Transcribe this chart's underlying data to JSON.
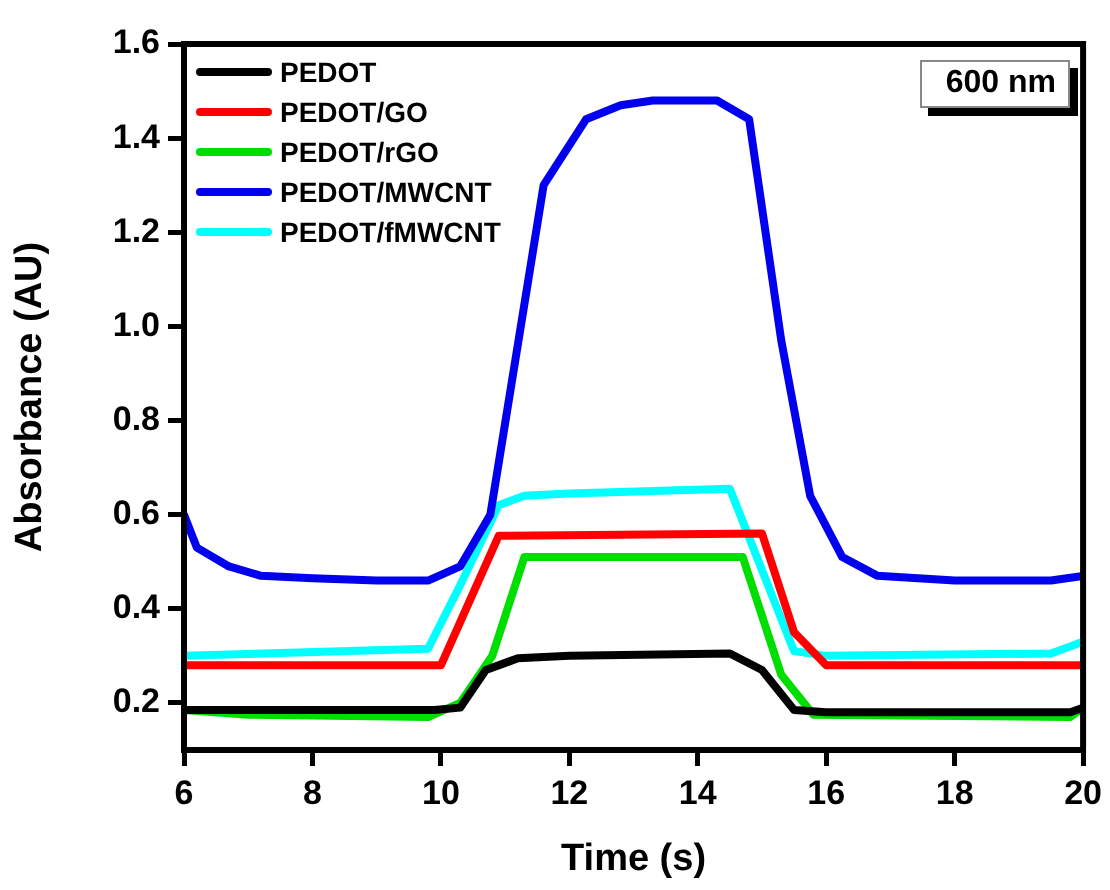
{
  "chart_data": {
    "type": "line",
    "xlabel": "Time (s)",
    "ylabel": "Absorbance (AU)",
    "annotations": [
      "600 nm"
    ],
    "xlim": [
      6,
      20
    ],
    "xticks": [
      6,
      8,
      10,
      12,
      14,
      16,
      18,
      20
    ],
    "ylim": [
      0.1,
      1.6
    ],
    "yticks": [
      {
        "value": 0.2,
        "label": "0.2"
      },
      {
        "value": 0.4,
        "label": "0.4"
      },
      {
        "value": 0.6,
        "label": "0.6"
      },
      {
        "value": 0.8,
        "label": "0.8"
      },
      {
        "value": 1.0,
        "label": "1.0"
      },
      {
        "value": 1.2,
        "label": "1.2"
      },
      {
        "value": 1.4,
        "label": "1.4"
      },
      {
        "value": 1.6,
        "label": "1.6"
      }
    ],
    "grid": false,
    "legend": "top left",
    "marker": "none",
    "line_style": "solid",
    "series": [
      {
        "name": "PEDOT",
        "color": "#000000",
        "x": [
          6,
          9.9,
          10.3,
          10.7,
          11.2,
          12,
          14.5,
          15,
          15.5,
          16,
          19.8,
          20
        ],
        "values": [
          0.185,
          0.185,
          0.19,
          0.27,
          0.295,
          0.3,
          0.305,
          0.27,
          0.185,
          0.18,
          0.18,
          0.19
        ]
      },
      {
        "name": "PEDOT/GO",
        "color": "#ff0000",
        "x": [
          6,
          10,
          10.9,
          15,
          15.5,
          16,
          20
        ],
        "values": [
          0.28,
          0.28,
          0.555,
          0.56,
          0.35,
          0.28,
          0.28
        ]
      },
      {
        "name": "PEDOT/rGO",
        "color": "#00dd00",
        "x": [
          6,
          7,
          9.8,
          10.3,
          10.8,
          11.3,
          14.7,
          15.3,
          15.8,
          19.8,
          20
        ],
        "values": [
          0.185,
          0.175,
          0.17,
          0.2,
          0.3,
          0.51,
          0.51,
          0.26,
          0.175,
          0.17,
          0.19
        ]
      },
      {
        "name": "PEDOT/MWCNT",
        "color": "#0000ee",
        "x": [
          6,
          6.2,
          6.7,
          7.2,
          8,
          9,
          9.8,
          10.3,
          10.77,
          11.6,
          12.26,
          12.8,
          13.3,
          14.3,
          14.8,
          15.3,
          15.75,
          16.25,
          16.8,
          18,
          19.5,
          20
        ],
        "values": [
          0.6,
          0.53,
          0.49,
          0.47,
          0.465,
          0.46,
          0.46,
          0.49,
          0.6,
          1.3,
          1.44,
          1.47,
          1.48,
          1.48,
          1.44,
          0.97,
          0.64,
          0.51,
          0.47,
          0.46,
          0.46,
          0.47
        ]
      },
      {
        "name": "PEDOT/fMWCNT",
        "color": "#00ffff",
        "x": [
          6,
          9.8,
          10.3,
          10.9,
          11.3,
          12,
          14.5,
          15.5,
          16,
          19.5,
          20
        ],
        "values": [
          0.3,
          0.315,
          0.45,
          0.62,
          0.64,
          0.645,
          0.655,
          0.31,
          0.3,
          0.305,
          0.33
        ]
      }
    ]
  }
}
